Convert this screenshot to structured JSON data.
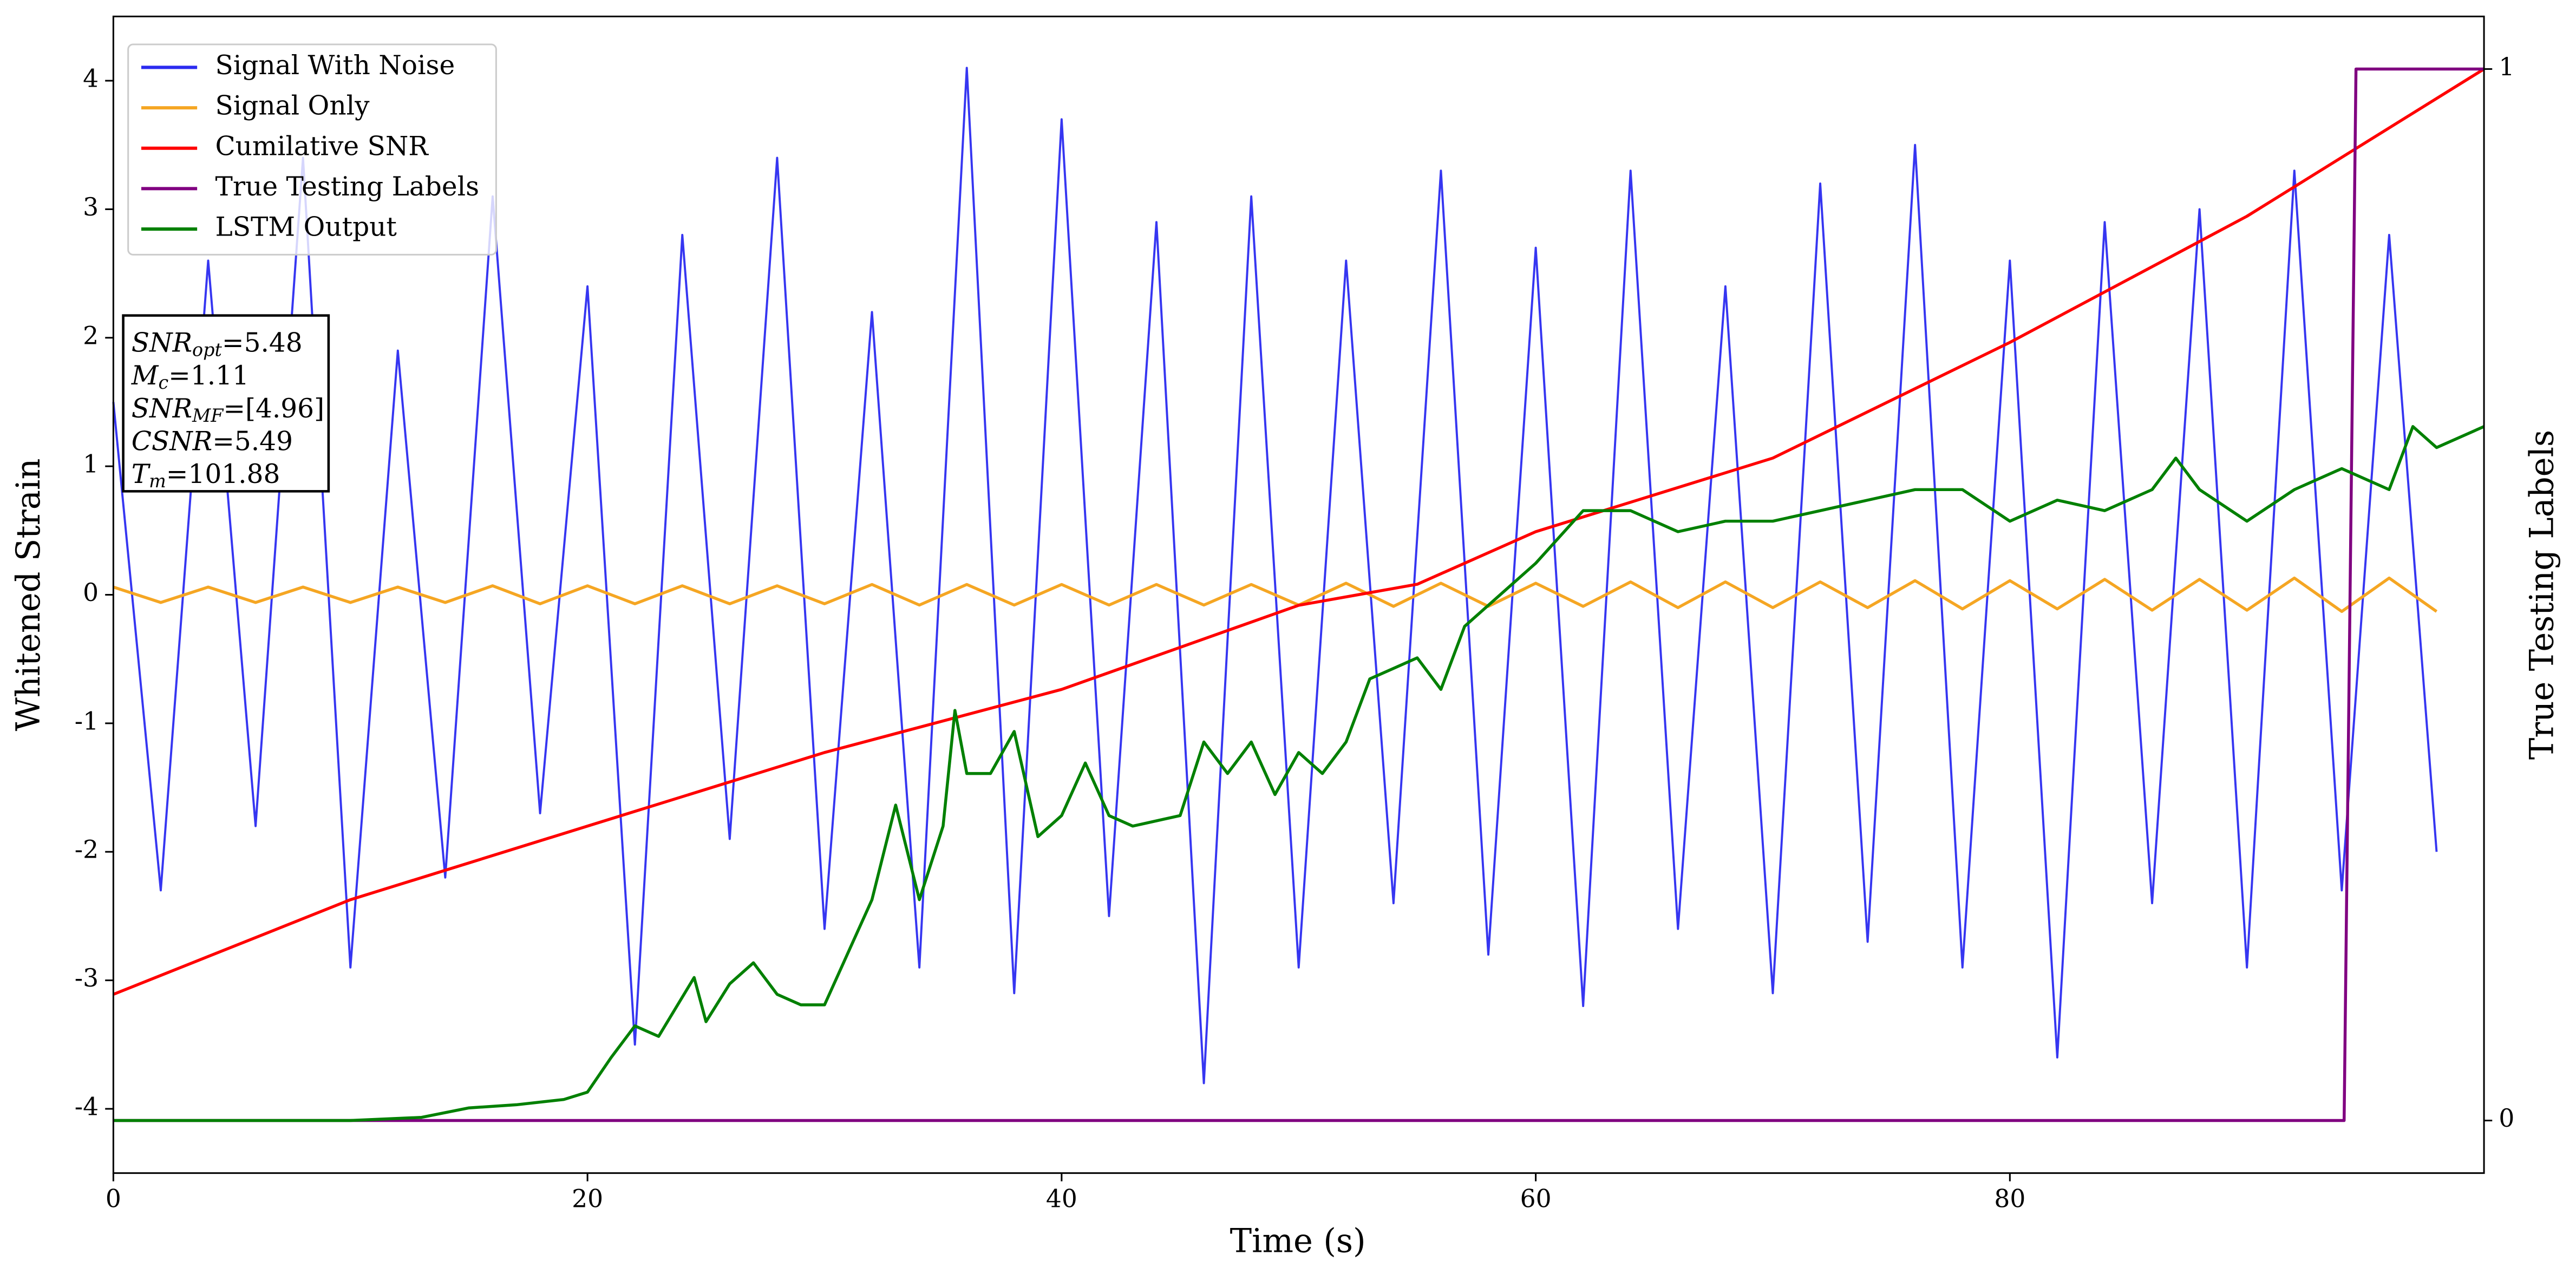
{
  "chart_data": {
    "type": "line",
    "xlabel": "Time (s)",
    "ylabel": "Whitened Strain",
    "y2label": "True Testing Labels",
    "xlim": [
      0,
      100
    ],
    "xticks": [
      0,
      20,
      40,
      60,
      80
    ],
    "ylim": [
      -4.5,
      4.5
    ],
    "yticks": [
      -4,
      -3,
      -2,
      -1,
      0,
      1,
      2,
      3,
      4
    ],
    "y2lim": [
      -0.05,
      1.05
    ],
    "y2ticks": [
      0,
      1
    ],
    "legend": "upper left",
    "annotation": [
      {
        "text": "SNR",
        "sub": "opt",
        "rest": "=5.48"
      },
      {
        "text": "M",
        "sub": "c",
        "rest": "=1.11"
      },
      {
        "text": "SNR",
        "sub": "MF",
        "rest": "=[4.96]"
      },
      {
        "text": "CSNR",
        "rest": "=5.49"
      },
      {
        "text": "T",
        "sub": "m",
        "rest": "=101.88"
      }
    ],
    "series": [
      {
        "name": "Signal With Noise",
        "color": "#2b2bf0",
        "axis": "y",
        "x": [
          0,
          2,
          4,
          6,
          8,
          10,
          12,
          14,
          16,
          18,
          20,
          22,
          24,
          26,
          28,
          30,
          32,
          34,
          36,
          38,
          40,
          42,
          44,
          46,
          48,
          50,
          52,
          54,
          56,
          58,
          60,
          62,
          64,
          66,
          68,
          70,
          72,
          74,
          76,
          78,
          80,
          82,
          84,
          86,
          88,
          90,
          92,
          94,
          96,
          98
        ],
        "values": [
          1.5,
          -2.3,
          2.6,
          -1.8,
          3.4,
          -2.9,
          1.9,
          -2.2,
          3.1,
          -1.7,
          2.4,
          -3.5,
          2.8,
          -1.9,
          3.4,
          -2.6,
          2.2,
          -2.9,
          4.1,
          -3.1,
          3.7,
          -2.5,
          2.9,
          -3.8,
          3.1,
          -2.9,
          2.6,
          -2.4,
          3.3,
          -2.8,
          2.7,
          -3.2,
          3.3,
          -2.6,
          2.4,
          -3.1,
          3.2,
          -2.7,
          3.5,
          -2.9,
          2.6,
          -3.6,
          2.9,
          -2.4,
          3.0,
          -2.9,
          3.3,
          -2.3,
          2.8,
          -2.0
        ]
      },
      {
        "name": "Signal Only",
        "color": "#f5a623",
        "axis": "y",
        "x": [
          0,
          2,
          4,
          6,
          8,
          10,
          12,
          14,
          16,
          18,
          20,
          22,
          24,
          26,
          28,
          30,
          32,
          34,
          36,
          38,
          40,
          42,
          44,
          46,
          48,
          50,
          52,
          54,
          56,
          58,
          60,
          62,
          64,
          66,
          68,
          70,
          72,
          74,
          76,
          78,
          80,
          82,
          84,
          86,
          88,
          90,
          92,
          94,
          96,
          98
        ],
        "values": [
          0.06,
          -0.06,
          0.06,
          -0.06,
          0.06,
          -0.06,
          0.06,
          -0.06,
          0.07,
          -0.07,
          0.07,
          -0.07,
          0.07,
          -0.07,
          0.07,
          -0.07,
          0.08,
          -0.08,
          0.08,
          -0.08,
          0.08,
          -0.08,
          0.08,
          -0.08,
          0.08,
          -0.08,
          0.09,
          -0.09,
          0.09,
          -0.09,
          0.09,
          -0.09,
          0.1,
          -0.1,
          0.1,
          -0.1,
          0.1,
          -0.1,
          0.11,
          -0.11,
          0.11,
          -0.11,
          0.12,
          -0.12,
          0.12,
          -0.12,
          0.13,
          -0.13,
          0.13,
          -0.13
        ]
      },
      {
        "name": "Cumilative SNR",
        "color": "#ff0000",
        "axis": "y2",
        "x": [
          0,
          10,
          20,
          30,
          40,
          50,
          55,
          60,
          70,
          80,
          90,
          95,
          100
        ],
        "values": [
          0.12,
          0.21,
          0.28,
          0.35,
          0.41,
          0.49,
          0.51,
          0.56,
          0.63,
          0.74,
          0.86,
          0.93,
          1.0
        ]
      },
      {
        "name": "True Testing Labels",
        "color": "#800080",
        "axis": "y2",
        "x": [
          0,
          94.1,
          94.6,
          100
        ],
        "values": [
          0,
          0,
          1,
          1
        ]
      },
      {
        "name": "LSTM Output",
        "color": "#008000",
        "axis": "y2",
        "x": [
          0,
          10,
          13,
          15,
          17,
          19,
          20,
          21,
          22,
          23,
          24.5,
          25,
          26,
          27,
          28,
          29,
          30,
          31,
          32,
          33,
          34,
          35,
          35.5,
          36,
          37,
          38,
          39,
          40,
          41,
          42,
          43,
          45,
          46,
          47,
          48,
          49,
          50,
          51,
          52,
          53,
          54,
          55,
          56,
          57,
          58,
          59,
          60,
          62,
          64,
          66,
          68,
          70,
          72,
          74,
          76,
          78,
          80,
          82,
          84,
          86,
          87,
          88,
          90,
          92,
          94,
          96,
          97,
          98,
          100
        ],
        "values": [
          0,
          0,
          0.003,
          0.012,
          0.015,
          0.02,
          0.027,
          0.06,
          0.09,
          0.08,
          0.136,
          0.094,
          0.13,
          0.15,
          0.12,
          0.11,
          0.11,
          0.16,
          0.21,
          0.3,
          0.21,
          0.28,
          0.39,
          0.33,
          0.33,
          0.37,
          0.27,
          0.29,
          0.34,
          0.29,
          0.28,
          0.29,
          0.36,
          0.33,
          0.36,
          0.31,
          0.35,
          0.33,
          0.36,
          0.42,
          0.43,
          0.44,
          0.41,
          0.47,
          0.49,
          0.51,
          0.53,
          0.58,
          0.58,
          0.56,
          0.57,
          0.57,
          0.58,
          0.59,
          0.6,
          0.6,
          0.57,
          0.59,
          0.58,
          0.6,
          0.63,
          0.6,
          0.57,
          0.6,
          0.62,
          0.6,
          0.66,
          0.64,
          0.66
        ]
      }
    ]
  }
}
